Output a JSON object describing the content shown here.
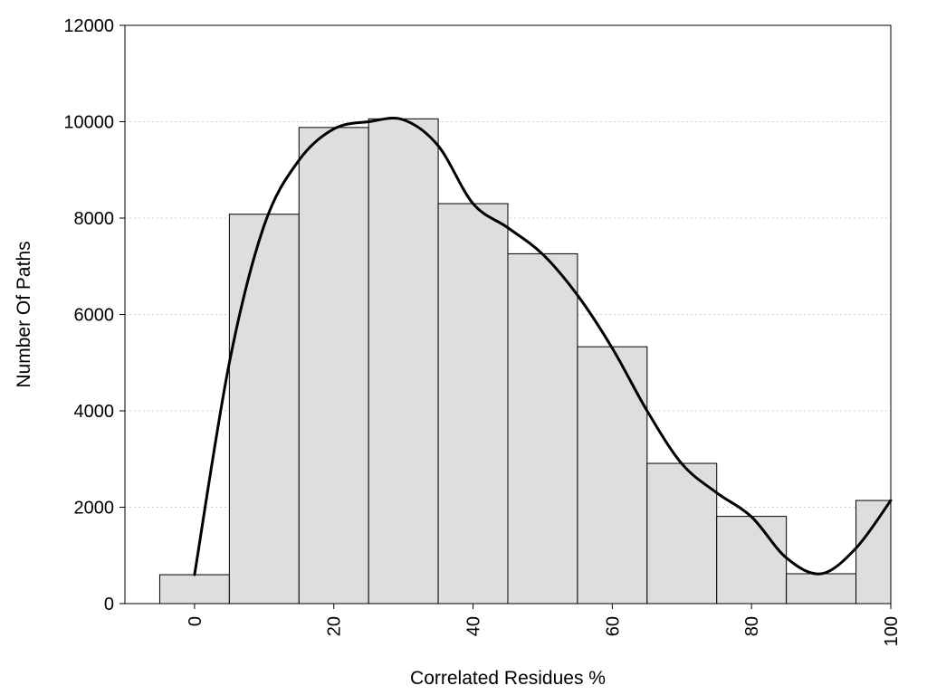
{
  "chart_data": {
    "type": "bar",
    "xlabel": "Correlated Residues %",
    "ylabel": "Number Of Paths",
    "xlim": [
      -10,
      100
    ],
    "ylim": [
      0,
      12000
    ],
    "x_ticks": [
      0,
      20,
      40,
      60,
      80,
      100
    ],
    "y_ticks": [
      0,
      2000,
      4000,
      6000,
      8000,
      10000,
      12000
    ],
    "grid": "horizontal dotted",
    "bin_width": 10,
    "categories": [
      0,
      10,
      20,
      30,
      40,
      50,
      60,
      70,
      80,
      90,
      100
    ],
    "values": [
      600,
      8080,
      9880,
      10060,
      8300,
      7260,
      5330,
      2910,
      1810,
      620,
      2140
    ],
    "bar_color": "#dedede",
    "curve": {
      "x": [
        0,
        5,
        10,
        15,
        20,
        25,
        30,
        35,
        40,
        45,
        50,
        55,
        60,
        65,
        70,
        75,
        80,
        85,
        90,
        95,
        100
      ],
      "y": [
        600,
        5000,
        7850,
        9200,
        9850,
        10000,
        10040,
        9500,
        8300,
        7800,
        7250,
        6400,
        5300,
        4000,
        2900,
        2300,
        1800,
        950,
        620,
        1150,
        2140
      ],
      "color": "#000000"
    }
  }
}
